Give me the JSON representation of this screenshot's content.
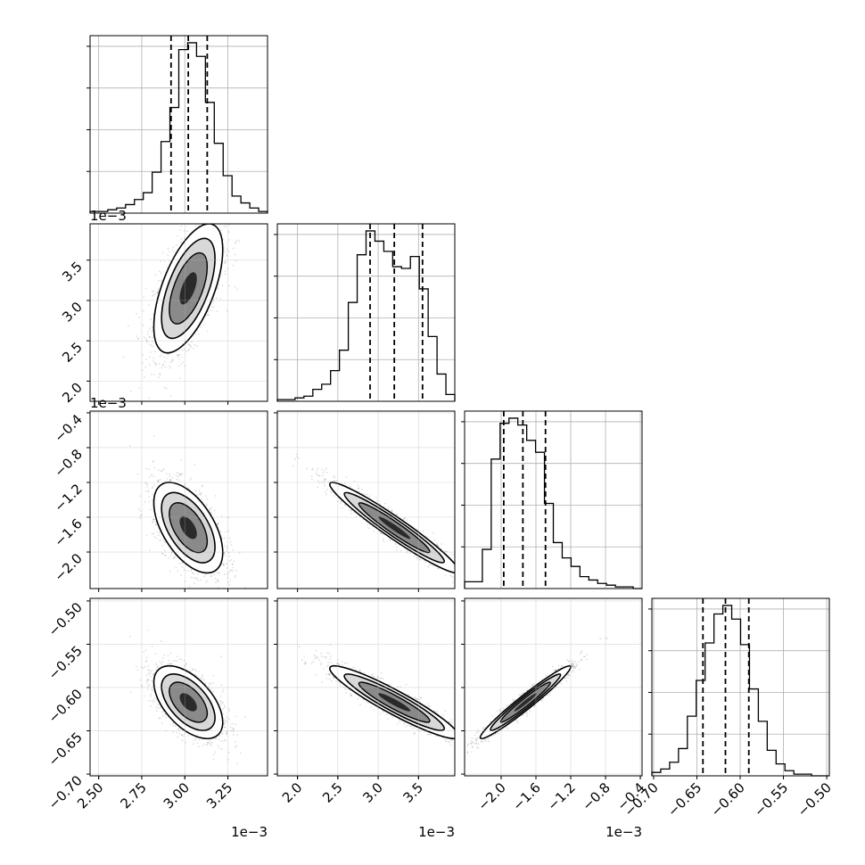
{
  "figure": {
    "type": "corner_plot",
    "background": "#ffffff",
    "mark_color": "#000000",
    "grid_color": "#b0b0b0",
    "quantile_line_style": "dashed"
  },
  "chart_data": {
    "type": "corner",
    "parameters": [
      {
        "range": [
          2.45,
          3.48
        ],
        "ticks": [
          {
            "v": 2.5,
            "l": "2.50"
          },
          {
            "v": 2.75,
            "l": "2.75"
          },
          {
            "v": 3.0,
            "l": "3.00"
          },
          {
            "v": 3.25,
            "l": "3.25"
          }
        ],
        "offset": "1e−3",
        "quantiles": [
          2.92,
          3.02,
          3.13
        ],
        "hist": [
          1,
          1,
          2,
          3,
          5,
          8,
          12,
          24,
          42,
          62,
          96,
          100,
          92,
          65,
          41,
          22,
          10,
          6,
          3,
          1
        ]
      },
      {
        "range": [
          1.75,
          3.95
        ],
        "ticks": [
          {
            "v": 2.0,
            "l": "2.0"
          },
          {
            "v": 2.5,
            "l": "2.5"
          },
          {
            "v": 3.0,
            "l": "3.0"
          },
          {
            "v": 3.5,
            "l": "3.5"
          }
        ],
        "offset": "1e−3",
        "quantiles": [
          2.9,
          3.2,
          3.55
        ],
        "hist": [
          1,
          1,
          2,
          3,
          7,
          10,
          18,
          30,
          58,
          86,
          100,
          94,
          88,
          79,
          78,
          85,
          66,
          38,
          16,
          4
        ]
      },
      {
        "range": [
          -2.42,
          -0.38
        ],
        "ticks": [
          {
            "v": -2.0,
            "l": "−2.0"
          },
          {
            "v": -1.6,
            "l": "−1.6"
          },
          {
            "v": -1.2,
            "l": "−1.2"
          },
          {
            "v": -0.8,
            "l": "−0.8"
          },
          {
            "v": -0.4,
            "l": "−0.4"
          }
        ],
        "offset": "1e−3",
        "quantiles": [
          -1.97,
          -1.75,
          -1.49
        ],
        "hist": [
          4,
          4,
          23,
          76,
          97,
          100,
          96,
          87,
          80,
          50,
          27,
          18,
          13,
          7,
          5,
          3,
          2,
          1,
          1,
          0
        ]
      },
      {
        "range": [
          -0.702,
          -0.497
        ],
        "ticks": [
          {
            "v": -0.7,
            "l": "−0.70"
          },
          {
            "v": -0.65,
            "l": "−0.65"
          },
          {
            "v": -0.6,
            "l": "−0.60"
          },
          {
            "v": -0.55,
            "l": "−0.55"
          },
          {
            "v": -0.5,
            "l": "−0.50"
          }
        ],
        "offset": "",
        "quantiles": [
          -0.643,
          -0.617,
          -0.59
        ],
        "hist": [
          2,
          4,
          8,
          16,
          35,
          56,
          78,
          95,
          100,
          92,
          77,
          51,
          32,
          15,
          7,
          3,
          1,
          1,
          0,
          0
        ]
      }
    ],
    "pairs": [
      {
        "i": 1,
        "j": 0,
        "mean": [
          3.02,
          3.15
        ],
        "sd": [
          0.1,
          0.4
        ],
        "rho": 0.6
      },
      {
        "i": 2,
        "j": 0,
        "mean": [
          3.02,
          -1.72
        ],
        "sd": [
          0.1,
          0.26
        ],
        "rho": -0.55
      },
      {
        "i": 2,
        "j": 1,
        "mean": [
          3.2,
          -1.72
        ],
        "sd": [
          0.4,
          0.26
        ],
        "rho": -0.96
      },
      {
        "i": 3,
        "j": 0,
        "mean": [
          3.02,
          -0.617
        ],
        "sd": [
          0.1,
          0.021
        ],
        "rho": -0.55
      },
      {
        "i": 3,
        "j": 1,
        "mean": [
          3.2,
          -0.617
        ],
        "sd": [
          0.4,
          0.021
        ],
        "rho": -0.93
      },
      {
        "i": 3,
        "j": 2,
        "mean": [
          -1.72,
          -0.617
        ],
        "sd": [
          0.26,
          0.021
        ],
        "rho": 0.97
      }
    ]
  }
}
